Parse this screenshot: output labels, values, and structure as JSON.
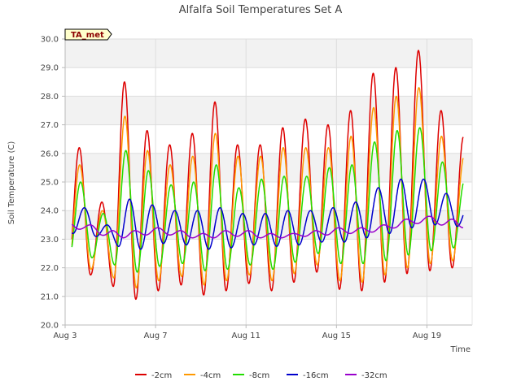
{
  "chart_data": {
    "type": "line",
    "title": "Alfalfa Soil Temperatures Set A",
    "xlabel": "Time",
    "ylabel": "Soil Temperature (C)",
    "badge": "TA_met",
    "ylim": [
      20.0,
      30.0
    ],
    "yticks": [
      "20.0",
      "21.0",
      "22.0",
      "23.0",
      "24.0",
      "25.0",
      "26.0",
      "27.0",
      "28.0",
      "29.0",
      "30.0"
    ],
    "xlim_days": [
      3,
      21
    ],
    "xticks": [
      {
        "label": "Aug 3",
        "day": 3
      },
      {
        "label": "Aug 7",
        "day": 7
      },
      {
        "label": "Aug 11",
        "day": 11
      },
      {
        "label": "Aug 15",
        "day": 15
      },
      {
        "label": "Aug 19",
        "day": 19
      }
    ],
    "grid": true,
    "legend_position": "bottom",
    "series": [
      {
        "name": "-2cm",
        "color": "#dd0000",
        "phase": 0.625,
        "day_start": 3.3,
        "day_end": 20.6,
        "max": [
          26.2,
          24.3,
          28.5,
          26.8,
          26.3,
          26.7,
          27.8,
          26.3,
          26.3,
          26.9,
          27.2,
          27.0,
          27.5,
          28.8,
          29.0,
          29.6,
          27.5,
          26.6
        ],
        "min": [
          21.8,
          21.7,
          21.0,
          20.8,
          21.6,
          21.2,
          20.9,
          21.5,
          21.4,
          21.0,
          22.0,
          21.7,
          20.8,
          21.6,
          21.4,
          22.2,
          21.6,
          22.4
        ]
      },
      {
        "name": "-4cm",
        "color": "#ff9900",
        "phase": 0.645,
        "day_start": 3.3,
        "day_end": 20.6,
        "max": [
          25.6,
          24.0,
          27.3,
          26.1,
          25.6,
          25.9,
          26.7,
          25.9,
          25.9,
          26.2,
          26.2,
          26.2,
          26.6,
          27.6,
          28.0,
          28.3,
          26.6,
          25.9
        ],
        "min": [
          22.0,
          21.9,
          21.4,
          21.2,
          21.9,
          21.5,
          21.3,
          21.8,
          21.7,
          21.4,
          22.2,
          22.0,
          21.1,
          21.9,
          21.6,
          22.4,
          21.9,
          22.6
        ]
      },
      {
        "name": "-8cm",
        "color": "#22dd00",
        "phase": 0.685,
        "day_start": 3.3,
        "day_end": 20.6,
        "max": [
          25.0,
          23.9,
          26.1,
          25.4,
          24.9,
          25.0,
          25.6,
          24.8,
          25.1,
          25.2,
          25.2,
          25.5,
          25.6,
          26.4,
          26.8,
          26.9,
          25.7,
          25.1
        ],
        "min": [
          22.4,
          22.3,
          21.9,
          21.8,
          22.3,
          22.0,
          21.8,
          22.1,
          22.1,
          21.8,
          22.6,
          22.4,
          21.9,
          22.4,
          22.1,
          22.8,
          22.4,
          23.0
        ]
      },
      {
        "name": "-16cm",
        "color": "#0000cc",
        "phase": 0.85,
        "day_start": 3.3,
        "day_end": 20.6,
        "max": [
          24.1,
          23.5,
          24.4,
          24.2,
          24.0,
          24.0,
          24.1,
          23.9,
          23.9,
          24.0,
          24.0,
          24.1,
          24.3,
          24.8,
          25.1,
          25.1,
          24.6,
          24.2
        ],
        "min": [
          23.2,
          23.0,
          22.5,
          22.8,
          22.9,
          22.7,
          22.6,
          22.8,
          22.8,
          22.7,
          22.9,
          22.9,
          22.9,
          23.2,
          23.2,
          23.6,
          23.4,
          23.5
        ]
      },
      {
        "name": "-32cm",
        "color": "#9900cc",
        "phase": 0.1,
        "day_start": 3.3,
        "day_end": 20.6,
        "max": [
          23.6,
          23.5,
          23.3,
          23.3,
          23.4,
          23.3,
          23.2,
          23.3,
          23.3,
          23.2,
          23.2,
          23.3,
          23.4,
          23.4,
          23.5,
          23.7,
          23.8,
          23.7
        ],
        "min": [
          23.4,
          23.3,
          23.0,
          23.1,
          23.2,
          23.1,
          23.0,
          23.1,
          23.1,
          23.0,
          23.1,
          23.1,
          23.2,
          23.2,
          23.3,
          23.5,
          23.6,
          23.4
        ]
      }
    ]
  }
}
